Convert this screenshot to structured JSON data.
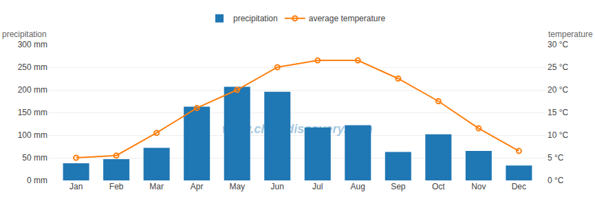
{
  "chart_data": {
    "type": "bar",
    "categories": [
      "Jan",
      "Feb",
      "Mar",
      "Apr",
      "May",
      "Jun",
      "Jul",
      "Aug",
      "Sep",
      "Oct",
      "Nov",
      "Dec"
    ],
    "series": [
      {
        "name": "precipitation",
        "type": "bar",
        "values": [
          38,
          47,
          72,
          163,
          207,
          196,
          117,
          122,
          63,
          102,
          65,
          33
        ]
      },
      {
        "name": "average temperature",
        "type": "line",
        "axis": "y2",
        "marker": "circle-open",
        "line_style": "solid",
        "values": [
          5,
          5.5,
          10.5,
          16,
          20,
          25,
          26.5,
          26.5,
          22.5,
          17.5,
          11.5,
          6.5
        ]
      }
    ],
    "ylabel": "precipitation",
    "y2label": "temperature",
    "annotations": [
      "www.chinadiscovery.com"
    ],
    "ylim": [
      0,
      300
    ],
    "yticks": [
      {
        "value": 0,
        "label": "0 mm"
      },
      {
        "value": 50,
        "label": "50 mm"
      },
      {
        "value": 100,
        "label": "100 mm"
      },
      {
        "value": 150,
        "label": "150 mm"
      },
      {
        "value": 200,
        "label": "200 mm"
      },
      {
        "value": 250,
        "label": "250 mm"
      },
      {
        "value": 300,
        "label": "300 mm"
      }
    ],
    "y2lim": [
      0,
      30
    ],
    "y2ticks": [
      {
        "value": 0,
        "label": "0 °C"
      },
      {
        "value": 5,
        "label": "5 °C"
      },
      {
        "value": 10,
        "label": "10 °C"
      },
      {
        "value": 15,
        "label": "15 °C"
      },
      {
        "value": 20,
        "label": "20 °C"
      },
      {
        "value": 25,
        "label": "25 °C"
      },
      {
        "value": 30,
        "label": "30 °C"
      }
    ],
    "grid": true,
    "legend": "top"
  }
}
